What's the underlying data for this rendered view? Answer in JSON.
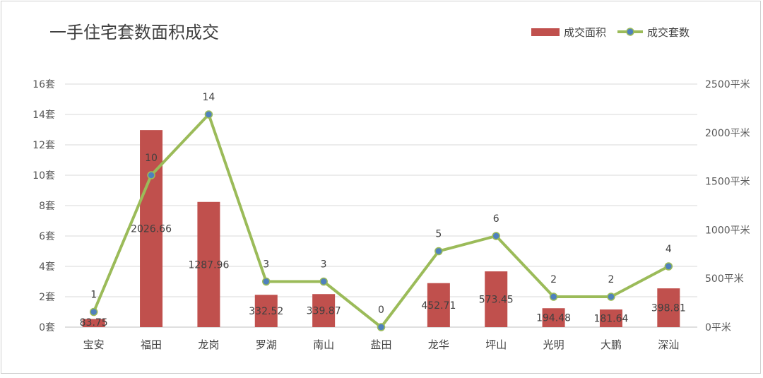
{
  "chart_data": {
    "type": "bar",
    "title": "一手住宅套数面积成交",
    "categories": [
      "宝安",
      "福田",
      "龙岗",
      "罗湖",
      "南山",
      "盐田",
      "龙华",
      "坪山",
      "光明",
      "大鹏",
      "深汕"
    ],
    "series": [
      {
        "name": "成交面积",
        "type": "bar",
        "axis": "right",
        "values": [
          83.75,
          2026.66,
          1287.96,
          332.52,
          339.87,
          0,
          452.71,
          573.45,
          194.48,
          181.64,
          398.81
        ],
        "labels": [
          "83.75",
          "2026.66",
          "1287.96",
          "332.52",
          "339.87",
          "",
          "452.71",
          "573.45",
          "194.48",
          "181.64",
          "398.81"
        ],
        "color": "#c0504d"
      },
      {
        "name": "成交套数",
        "type": "line",
        "axis": "left",
        "values": [
          1,
          10,
          14,
          3,
          3,
          0,
          5,
          6,
          2,
          2,
          4
        ],
        "labels": [
          "1",
          "10",
          "14",
          "3",
          "3",
          "0",
          "5",
          "6",
          "2",
          "2",
          "4"
        ],
        "color": "#9bbb59",
        "marker_color": "#4f81bd"
      }
    ],
    "y_left": {
      "ylim": [
        0,
        16
      ],
      "ticks": [
        0,
        2,
        4,
        6,
        8,
        10,
        12,
        14,
        16
      ],
      "tick_labels": [
        "0套",
        "2套",
        "4套",
        "6套",
        "8套",
        "10套",
        "12套",
        "14套",
        "16套"
      ]
    },
    "y_right": {
      "ylim": [
        0,
        2500
      ],
      "ticks": [
        0,
        500,
        1000,
        1500,
        2000,
        2500
      ],
      "tick_labels": [
        "0平米",
        "500平米",
        "1000平米",
        "1500平米",
        "2000平米",
        "2500平米"
      ]
    },
    "grid": true,
    "legend_position": "top-right"
  }
}
